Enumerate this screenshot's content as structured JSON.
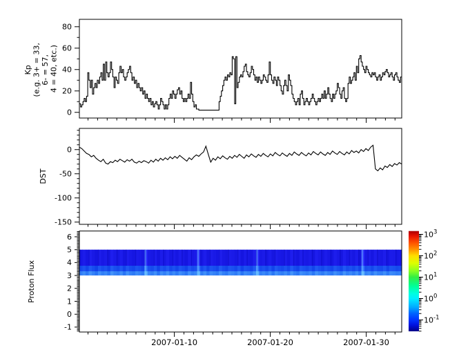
{
  "figure": {
    "background": "#ffffff",
    "line_color": "#000000"
  },
  "x_axis": {
    "major_tick_labels": [
      "2007-01-10",
      "2007-01-20",
      "2007-01-30"
    ],
    "minor_tick_interval": "1 day"
  },
  "panels": [
    {
      "name": "kp",
      "ylabel_lines": [
        "Kp",
        "(e.g. 3+ = 33,",
        "6- = 57,",
        "4 = 40, etc.)"
      ],
      "ytick_labels": [
        "0",
        "20",
        "40",
        "60",
        "80"
      ]
    },
    {
      "name": "dst",
      "ylabel_lines": [
        "DST"
      ],
      "ytick_labels": [
        "0",
        "-50",
        "-100",
        "-150"
      ]
    },
    {
      "name": "proton_flux",
      "ylabel_lines": [
        "Proton Flux"
      ],
      "ytick_labels": [
        "-1",
        "0",
        "1",
        "2",
        "3",
        "4",
        "5",
        "6"
      ]
    }
  ],
  "colorbar": {
    "base": "10",
    "tick_exponents": [
      "3",
      "2",
      "1",
      "0",
      "-1"
    ],
    "scale": "log",
    "gradient_stops": [
      [
        0.0,
        "#aa0000"
      ],
      [
        0.05,
        "#e81300"
      ],
      [
        0.12,
        "#ff5500"
      ],
      [
        0.19,
        "#ff9900"
      ],
      [
        0.246,
        "#ffdd00"
      ],
      [
        0.32,
        "#ddff00"
      ],
      [
        0.4,
        "#88ff22"
      ],
      [
        0.46,
        "#33ee44"
      ],
      [
        0.55,
        "#00ff99"
      ],
      [
        0.62,
        "#00ffdd"
      ],
      [
        0.673,
        "#00eeff"
      ],
      [
        0.76,
        "#00aaff"
      ],
      [
        0.82,
        "#0066ff"
      ],
      [
        0.886,
        "#0033ff"
      ],
      [
        0.94,
        "#0011dd"
      ],
      [
        1.0,
        "#000088"
      ]
    ]
  },
  "chart_data": [
    {
      "type": "line",
      "style": "step",
      "title": "Kp (scaled Kp*10)",
      "x_start": "2006-12-31",
      "x_end": "2007-02-03",
      "x_span_days": 33.6,
      "x_major_tick_days": [
        9.9,
        19.9,
        29.9
      ],
      "x_major_tick_labels": [
        "2007-01-10",
        "2007-01-20",
        "2007-01-30"
      ],
      "ylim": [
        -5,
        87
      ],
      "yticks": [
        0,
        20,
        40,
        60,
        80
      ],
      "values": [
        8,
        5,
        7,
        10,
        13,
        10,
        15,
        37,
        30,
        23,
        30,
        17,
        23,
        27,
        23,
        30,
        27,
        33,
        37,
        30,
        45,
        30,
        47,
        37,
        33,
        37,
        47,
        40,
        33,
        23,
        33,
        30,
        27,
        37,
        43,
        37,
        40,
        33,
        30,
        33,
        37,
        40,
        43,
        37,
        30,
        33,
        27,
        30,
        23,
        27,
        23,
        20,
        23,
        17,
        20,
        13,
        17,
        13,
        10,
        13,
        7,
        10,
        5,
        8,
        10,
        7,
        3,
        7,
        13,
        10,
        7,
        3,
        7,
        3,
        7,
        13,
        17,
        13,
        20,
        17,
        13,
        17,
        21,
        23,
        17,
        20,
        13,
        10,
        13,
        10,
        13,
        17,
        13,
        28,
        17,
        10,
        5,
        7,
        3,
        3,
        2,
        2,
        2,
        2,
        2,
        2,
        2,
        2,
        2,
        2,
        2,
        2,
        2,
        2,
        2,
        2,
        2,
        10,
        15,
        20,
        25,
        30,
        33,
        30,
        35,
        33,
        37,
        35,
        52,
        50,
        8,
        52,
        23,
        28,
        33,
        35,
        33,
        38,
        43,
        45,
        38,
        35,
        33,
        37,
        43,
        40,
        35,
        30,
        33,
        28,
        33,
        30,
        27,
        30,
        35,
        33,
        30,
        28,
        35,
        47,
        35,
        30,
        27,
        33,
        30,
        25,
        33,
        30,
        25,
        20,
        17,
        25,
        30,
        25,
        20,
        35,
        30,
        25,
        17,
        13,
        10,
        7,
        10,
        13,
        7,
        17,
        20,
        13,
        7,
        10,
        13,
        10,
        7,
        10,
        13,
        17,
        13,
        10,
        7,
        10,
        13,
        10,
        13,
        17,
        13,
        20,
        13,
        17,
        23,
        17,
        13,
        10,
        17,
        13,
        17,
        20,
        27,
        23,
        17,
        13,
        20,
        23,
        13,
        10,
        13,
        27,
        33,
        27,
        30,
        33,
        37,
        30,
        43,
        37,
        50,
        53,
        47,
        43,
        40,
        37,
        43,
        40,
        37,
        35,
        33,
        37,
        35,
        37,
        33,
        30,
        33,
        35,
        30,
        33,
        37,
        35,
        38,
        40,
        37,
        33,
        35,
        37,
        33,
        30,
        35,
        37,
        33,
        30,
        28,
        33
      ]
    },
    {
      "type": "line",
      "style": "plain",
      "title": "DST",
      "ylim": [
        -155,
        44
      ],
      "yticks": [
        0,
        -50,
        -100,
        -150
      ],
      "values": [
        5,
        2,
        -3,
        -8,
        -10,
        -15,
        -12,
        -18,
        -22,
        -25,
        -20,
        -28,
        -30,
        -25,
        -27,
        -22,
        -25,
        -20,
        -23,
        -26,
        -21,
        -24,
        -20,
        -26,
        -28,
        -24,
        -27,
        -23,
        -25,
        -28,
        -22,
        -26,
        -20,
        -24,
        -18,
        -22,
        -17,
        -21,
        -15,
        -19,
        -14,
        -18,
        -12,
        -16,
        -20,
        -24,
        -17,
        -21,
        -15,
        -11,
        -14,
        -9,
        -5,
        7,
        -10,
        -26,
        -18,
        -22,
        -15,
        -19,
        -13,
        -17,
        -20,
        -14,
        -18,
        -12,
        -16,
        -10,
        -14,
        -18,
        -11,
        -15,
        -9,
        -13,
        -16,
        -10,
        -14,
        -8,
        -12,
        -15,
        -9,
        -13,
        -6,
        -10,
        -13,
        -7,
        -11,
        -14,
        -8,
        -12,
        -5,
        -9,
        -12,
        -6,
        -10,
        -13,
        -7,
        -11,
        -4,
        -8,
        -11,
        -5,
        -9,
        -12,
        -6,
        -10,
        -3,
        -7,
        -10,
        -4,
        -8,
        -11,
        -5,
        -9,
        -2,
        -6,
        -3,
        -7,
        0,
        -4,
        2,
        -2,
        5,
        9,
        -40,
        -44,
        -38,
        -42,
        -34,
        -37,
        -31,
        -35,
        -29,
        -32,
        -27,
        -30
      ]
    },
    {
      "type": "heatmap",
      "title": "Proton Flux spectrogram",
      "ylim": [
        -1.4,
        6.45
      ],
      "yticks": [
        -1,
        0,
        1,
        2,
        3,
        4,
        5,
        6
      ],
      "band_y_range": [
        3,
        5
      ],
      "color_scale": {
        "type": "log",
        "min": 0.03,
        "max": 1100,
        "tick_values": [
          0.1,
          1,
          10,
          100,
          1000
        ]
      },
      "column_intensities": [
        0.42,
        0.55,
        0.38,
        0.61,
        0.47,
        0.33,
        0.58,
        0.44,
        0.52,
        0.36,
        0.63,
        0.49,
        0.41,
        0.57,
        0.35,
        0.6,
        0.46,
        0.39,
        0.54,
        0.48,
        0.37,
        0.92,
        0.5,
        0.43,
        0.59,
        0.34,
        0.56,
        0.45,
        0.62,
        0.4,
        0.53,
        0.38,
        0.57,
        0.47,
        0.35,
        0.6,
        0.44,
        0.51,
        0.9,
        0.42,
        0.58,
        0.36,
        0.55,
        0.48,
        0.39,
        0.62,
        0.45,
        0.37,
        0.56,
        0.5,
        0.41,
        0.59,
        0.34,
        0.53,
        0.47,
        0.38,
        0.61,
        0.89,
        0.44,
        0.52,
        0.4,
        0.57,
        0.36,
        0.6,
        0.48,
        0.42,
        0.55,
        0.39,
        0.63,
        0.46,
        0.35,
        0.58,
        0.5,
        0.43,
        0.54,
        0.37,
        0.61,
        0.49,
        0.4,
        0.56,
        0.45,
        0.38,
        0.59,
        0.47,
        0.36,
        0.62,
        0.44,
        0.52,
        0.41,
        0.57,
        0.35,
        0.93,
        0.48,
        0.55,
        0.39,
        0.6,
        0.46,
        0.43,
        0.58,
        0.37,
        0.54,
        0.5,
        0.42,
        0.47
      ]
    }
  ]
}
